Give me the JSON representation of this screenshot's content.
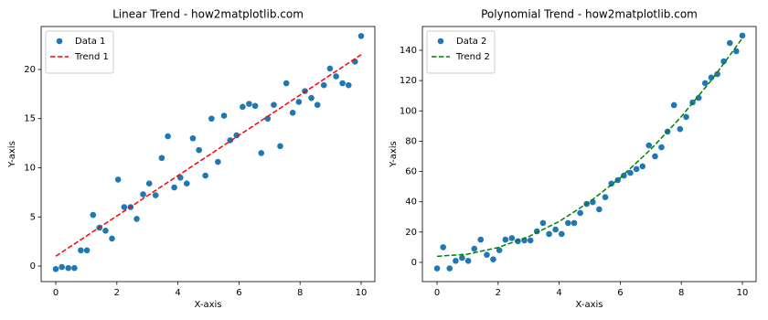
{
  "chart_data": [
    {
      "type": "scatter",
      "title": "Linear Trend - how2matplotlib.com",
      "x_label": "X-axis",
      "y_label": "Y-axis",
      "xlim": [
        -0.48,
        10.45
      ],
      "ylim": [
        -1.58,
        24.37
      ],
      "xticks": [
        0,
        2,
        4,
        6,
        8,
        10
      ],
      "yticks": [
        0,
        5,
        10,
        15,
        20
      ],
      "grid": false,
      "legend": "upper left",
      "x": [
        0,
        0.2,
        0.41,
        0.61,
        0.82,
        1.02,
        1.22,
        1.43,
        1.63,
        1.84,
        2.04,
        2.24,
        2.45,
        2.65,
        2.86,
        3.06,
        3.27,
        3.47,
        3.67,
        3.88,
        4.08,
        4.29,
        4.49,
        4.69,
        4.9,
        5.1,
        5.31,
        5.51,
        5.71,
        5.92,
        6.12,
        6.33,
        6.53,
        6.73,
        6.94,
        7.14,
        7.35,
        7.55,
        7.76,
        7.96,
        8.16,
        8.37,
        8.57,
        8.78,
        8.98,
        9.18,
        9.39,
        9.59,
        9.8,
        10
      ],
      "series": [
        {
          "name": "Data 1",
          "type": "scatter",
          "color": "#1f77b4",
          "values": [
            -0.3,
            -0.1,
            -0.2,
            -0.2,
            1.6,
            1.6,
            5.2,
            3.9,
            3.6,
            2.8,
            8.8,
            6.0,
            6.0,
            4.8,
            7.3,
            8.4,
            7.2,
            11.0,
            13.2,
            8.0,
            9.0,
            8.4,
            13.0,
            11.8,
            9.2,
            15.0,
            10.6,
            15.3,
            12.8,
            13.3,
            16.2,
            16.5,
            16.3,
            11.5,
            15.0,
            16.4,
            12.2,
            18.6,
            15.6,
            16.7,
            17.8,
            17.1,
            16.4,
            18.4,
            20.1,
            19.3,
            18.6,
            18.4,
            20.8,
            23.4
          ]
        },
        {
          "name": "Trend 1",
          "type": "line",
          "color": "#ff0000",
          "linestyle": "dashed",
          "x": [
            0,
            10
          ],
          "values": [
            1,
            21.5
          ]
        }
      ]
    },
    {
      "type": "scatter",
      "title": "Polynomial Trend - how2matplotlib.com",
      "x_label": "X-axis",
      "y_label": "Y-axis",
      "xlim": [
        -0.48,
        10.45
      ],
      "ylim": [
        -12.7,
        155.7
      ],
      "xticks": [
        0,
        2,
        4,
        6,
        8,
        10
      ],
      "yticks": [
        0,
        20,
        40,
        60,
        80,
        100,
        120,
        140
      ],
      "grid": false,
      "legend": "upper left",
      "x": [
        0,
        0.2,
        0.41,
        0.61,
        0.82,
        1.02,
        1.22,
        1.43,
        1.63,
        1.84,
        2.04,
        2.24,
        2.45,
        2.65,
        2.86,
        3.06,
        3.27,
        3.47,
        3.67,
        3.88,
        4.08,
        4.29,
        4.49,
        4.69,
        4.9,
        5.1,
        5.31,
        5.51,
        5.71,
        5.92,
        6.12,
        6.33,
        6.53,
        6.73,
        6.94,
        7.14,
        7.35,
        7.55,
        7.76,
        7.96,
        8.16,
        8.37,
        8.57,
        8.78,
        8.98,
        9.18,
        9.39,
        9.59,
        9.8,
        10
      ],
      "series": [
        {
          "name": "Data 2",
          "type": "scatter",
          "color": "#1f77b4",
          "values": [
            -4,
            10,
            -4,
            1,
            3,
            1,
            9,
            15,
            5,
            2,
            8,
            15,
            16,
            14,
            14.5,
            14.5,
            20.5,
            26,
            18.7,
            21.7,
            18.7,
            26,
            26,
            32.6,
            38.6,
            39.8,
            35,
            43,
            52,
            54.3,
            57.3,
            59.1,
            61.6,
            63.4,
            77.2,
            70,
            76,
            86.3,
            103.8,
            88,
            96,
            105.6,
            108.6,
            118.3,
            122,
            124.3,
            132.7,
            144.8,
            139.4,
            149.7
          ]
        },
        {
          "name": "Trend 2",
          "type": "line",
          "color": "#008000",
          "linestyle": "dashed",
          "x": [
            0,
            1,
            2,
            3,
            4,
            5,
            6,
            7,
            8,
            9,
            10
          ],
          "values": [
            4,
            5.4,
            9.8,
            17,
            27,
            40,
            55.8,
            74.6,
            96.2,
            120.6,
            148
          ]
        }
      ]
    }
  ]
}
